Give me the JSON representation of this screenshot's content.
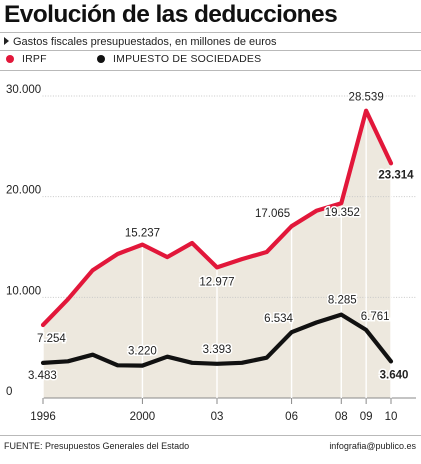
{
  "header": {
    "title": "Evolución de las deducciones",
    "subtitle": "Gastos fiscales presupuestados, en millones de euros"
  },
  "legend": {
    "irpf": "IRPF",
    "sociedades": "IMPUESTO DE SOCIEDADES"
  },
  "footer": {
    "source": "FUENTE: Presupuestos Generales del Estado",
    "credit": "infografia@publico.es"
  },
  "colors": {
    "irpf": "#e2173a",
    "sociedades": "#111111",
    "area": "#ede8de",
    "grid": "#c8c8c8"
  },
  "chart_data": {
    "type": "line",
    "title": "Evolución de las deducciones",
    "subtitle": "Gastos fiscales presupuestados, en millones de euros",
    "xlabel": "",
    "ylabel": "",
    "ylim": [
      0,
      30000
    ],
    "y_ticks": [
      {
        "value": 0,
        "label": "0"
      },
      {
        "value": 10000,
        "label": "10.000"
      },
      {
        "value": 20000,
        "label": "20.000"
      },
      {
        "value": 30000,
        "label": "30.000"
      }
    ],
    "x": [
      1996,
      1997,
      1998,
      1999,
      2000,
      2001,
      2002,
      2003,
      2004,
      2005,
      2006,
      2007,
      2008,
      2009,
      2010
    ],
    "x_ticks": [
      {
        "x": 1996,
        "label": "1996"
      },
      {
        "x": 2000,
        "label": "2000"
      },
      {
        "x": 2003,
        "label": "03"
      },
      {
        "x": 2006,
        "label": "06"
      },
      {
        "x": 2008,
        "label": "08"
      },
      {
        "x": 2009,
        "label": "09"
      },
      {
        "x": 2010,
        "label": "10"
      }
    ],
    "x_grid": [
      1996,
      2000,
      2003,
      2006,
      2008,
      2009,
      2010
    ],
    "grid": true,
    "legend_position": "top",
    "series": [
      {
        "name": "IRPF",
        "color": "#e2173a",
        "filled": true,
        "values": [
          7254,
          9800,
          12700,
          14300,
          15237,
          14000,
          15400,
          12977,
          13800,
          14500,
          17065,
          18600,
          19352,
          28539,
          23314
        ],
        "labels": [
          {
            "x": 1996,
            "value": 7254,
            "text": "7.254",
            "bold": false
          },
          {
            "x": 2000,
            "value": 15237,
            "text": "15.237",
            "bold": false
          },
          {
            "x": 2003,
            "value": 12977,
            "text": "12.977",
            "bold": false
          },
          {
            "x": 2006,
            "value": 17065,
            "text": "17.065",
            "bold": false
          },
          {
            "x": 2008,
            "value": 19352,
            "text": "19.352",
            "bold": false
          },
          {
            "x": 2009,
            "value": 28539,
            "text": "28.539",
            "bold": false
          },
          {
            "x": 2010,
            "value": 23314,
            "text": "23.314",
            "bold": true
          }
        ]
      },
      {
        "name": "IMPUESTO DE SOCIEDADES",
        "color": "#111111",
        "filled": false,
        "values": [
          3483,
          3650,
          4300,
          3250,
          3220,
          4100,
          3500,
          3393,
          3500,
          4000,
          6534,
          7500,
          8285,
          6761,
          3640
        ],
        "labels": [
          {
            "x": 1996,
            "value": 3483,
            "text": "3.483",
            "bold": false
          },
          {
            "x": 2000,
            "value": 3220,
            "text": "3.220",
            "bold": false
          },
          {
            "x": 2003,
            "value": 3393,
            "text": "3.393",
            "bold": false
          },
          {
            "x": 2006,
            "value": 6534,
            "text": "6.534",
            "bold": false
          },
          {
            "x": 2008,
            "value": 8285,
            "text": "8.285",
            "bold": false
          },
          {
            "x": 2009,
            "value": 6761,
            "text": "6.761",
            "bold": false
          },
          {
            "x": 2010,
            "value": 3640,
            "text": "3.640",
            "bold": true
          }
        ]
      }
    ]
  }
}
